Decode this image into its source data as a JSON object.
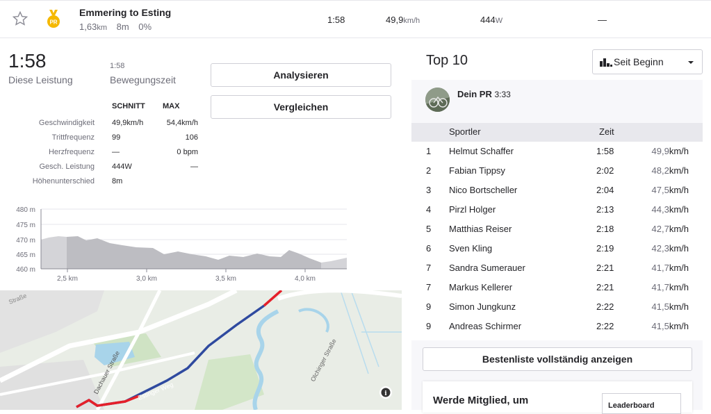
{
  "segment": {
    "title": "Emmering to Esting",
    "distance": "1,63",
    "distance_unit": "km",
    "elev_gain": "8m",
    "grade": "0%",
    "time": "1:58",
    "speed": "49,9",
    "speed_unit": "km/h",
    "power": "444",
    "power_unit": "W",
    "extra": "—",
    "pr_badge": "PR"
  },
  "effort": {
    "time": "1:58",
    "time_label": "Diese Leistung",
    "moving_time": "1:58",
    "moving_label": "Bewegungszeit",
    "analyze_label": "Analysieren",
    "compare_label": "Vergleichen"
  },
  "stats": {
    "col_avg": "SCHNITT",
    "col_max": "MAX",
    "rows": [
      {
        "label": "Geschwindigkeit",
        "avg": "49,9km/h",
        "max": "54,4km/h"
      },
      {
        "label": "Trittfrequenz",
        "avg": "99",
        "max": "106"
      },
      {
        "label": "Herzfrequenz",
        "avg": "—",
        "max": "0 bpm"
      },
      {
        "label": "Gesch. Leistung",
        "avg": "444W",
        "max": "—"
      },
      {
        "label": "Höhenunterschied",
        "avg": "8m",
        "max": ""
      }
    ]
  },
  "elevation_chart": {
    "y_ticks": [
      "480 m",
      "475 m",
      "470 m",
      "465 m",
      "460 m"
    ],
    "x_ticks": [
      "2,5 km",
      "3,0 km",
      "3,5 km",
      "4,0 km"
    ]
  },
  "map": {
    "labels": [
      "Straße",
      "Dachauer Straße",
      "Estinger Weg",
      "Olchinger Straße"
    ],
    "info_icon": "info-icon"
  },
  "leaderboard": {
    "title": "Top 10",
    "filter": "Seit Beginn",
    "your_pr_label": "Dein PR",
    "your_pr_time": "3:33",
    "col_athlete": "Sportler",
    "col_time": "Zeit",
    "entries": [
      {
        "rank": "1",
        "name": "Helmut Schaffer",
        "time": "1:58",
        "speed": "49,9"
      },
      {
        "rank": "2",
        "name": "Fabian Tippsy",
        "time": "2:02",
        "speed": "48,2"
      },
      {
        "rank": "3",
        "name": "Nico Bortscheller",
        "time": "2:04",
        "speed": "47,5"
      },
      {
        "rank": "4",
        "name": "Pirzl Holger",
        "time": "2:13",
        "speed": "44,3"
      },
      {
        "rank": "5",
        "name": "Matthias Reiser",
        "time": "2:18",
        "speed": "42,7"
      },
      {
        "rank": "6",
        "name": "Sven Kling",
        "time": "2:19",
        "speed": "42,3"
      },
      {
        "rank": "7",
        "name": "Sandra Sumerauer",
        "time": "2:21",
        "speed": "41,7"
      },
      {
        "rank": "7",
        "name": "Markus Kellerer",
        "time": "2:21",
        "speed": "41,7"
      },
      {
        "rank": "9",
        "name": "Simon Jungkunz",
        "time": "2:22",
        "speed": "41,5"
      },
      {
        "rank": "9",
        "name": "Andreas Schirmer",
        "time": "2:22",
        "speed": "41,5"
      }
    ],
    "speed_unit": "km/h",
    "show_all_label": "Bestenliste vollständig anzeigen",
    "member_title": "Werde Mitglied, um",
    "member_badge": "Leaderboard"
  }
}
